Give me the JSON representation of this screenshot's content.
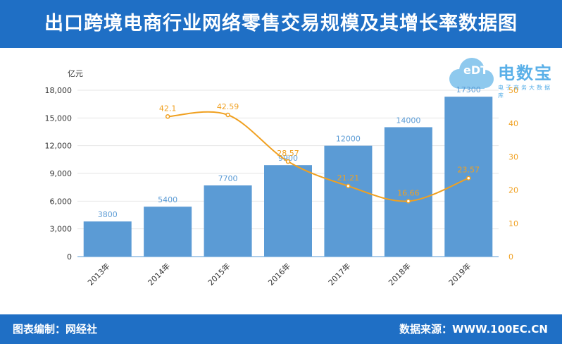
{
  "header": {
    "title": "出口跨境电商行业网络零售交易规模及其增长率数据图"
  },
  "footer": {
    "left": "图表编制：网经社",
    "right": "数据来源：WWW.100EC.CN"
  },
  "logo": {
    "text": "电数宝",
    "subtext": "电子商务大数据库",
    "mark": "eDT"
  },
  "chart_data": {
    "type": "bar",
    "categories": [
      "2013年",
      "2014年",
      "2015年",
      "2016年",
      "2017年",
      "2018年",
      "2019年"
    ],
    "series": [
      {
        "type": "bar",
        "axis": "left",
        "values": [
          3800,
          5400,
          7700,
          9900,
          12000,
          14000,
          17300
        ]
      },
      {
        "type": "line",
        "axis": "right",
        "values": [
          null,
          42.1,
          42.59,
          28.57,
          21.21,
          16.66,
          23.57
        ]
      }
    ],
    "bar_labels": [
      "3800",
      "5400",
      "7700",
      "9900",
      "12000",
      "14000",
      "17300"
    ],
    "line_labels": [
      "",
      "42.1",
      "42.59",
      "28.57",
      "21.21",
      "16.66",
      "23.57"
    ],
    "ylabel": "亿元",
    "ylim": [
      0,
      18000
    ],
    "yticks": [
      "0",
      "3,000",
      "6,000",
      "9,000",
      "12,000",
      "15,000",
      "18,000"
    ],
    "y2lim": [
      0,
      50
    ],
    "y2ticks": [
      "0",
      "10",
      "20",
      "30",
      "40",
      "50"
    ],
    "colors": {
      "bar": "#5b9bd5",
      "line": "#f0a020"
    },
    "grid": true
  }
}
